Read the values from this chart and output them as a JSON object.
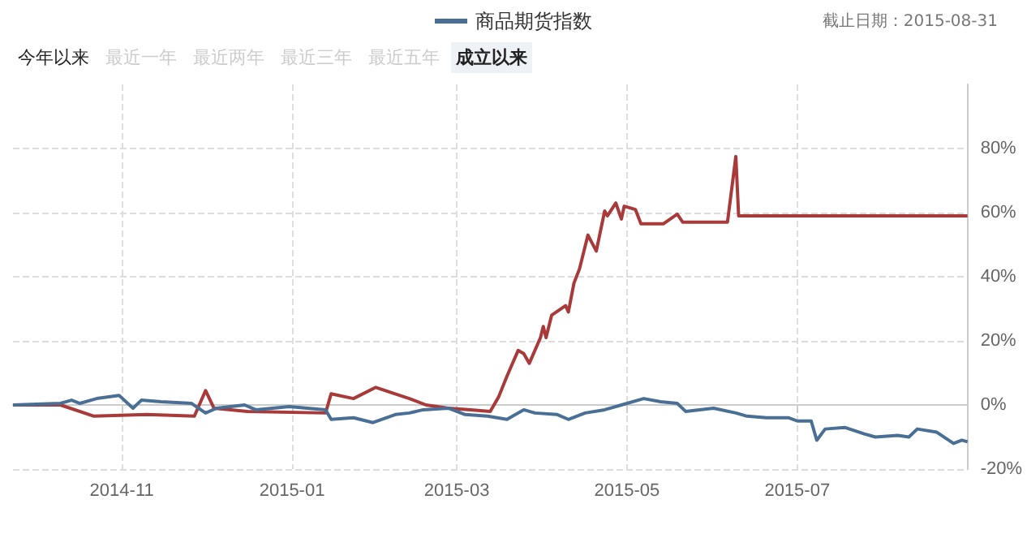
{
  "chart_data": {
    "type": "line",
    "annotations": [
      "截止日期：2015-08-31",
      "今年以来",
      "最近一年",
      "最近两年",
      "最近三年",
      "最近五年",
      "成立以来"
    ],
    "series": [
      {
        "color": "#a83a3a",
        "x": [
          "2014-09-23",
          "2014-10-10",
          "2014-10-22",
          "2014-11-10",
          "2014-11-27",
          "2014-12-01",
          "2014-12-04",
          "2014-12-16",
          "2015-01-13",
          "2015-01-15",
          "2015-01-23",
          "2015-01-31",
          "2015-02-05",
          "2015-02-12",
          "2015-02-18",
          "2015-02-26",
          "2015-03-06",
          "2015-03-13",
          "2015-03-16",
          "2015-03-19",
          "2015-03-23",
          "2015-03-25",
          "2015-03-27",
          "2015-03-31",
          "2015-04-01",
          "2015-04-02",
          "2015-04-04",
          "2015-04-09",
          "2015-04-10",
          "2015-04-12",
          "2015-04-14",
          "2015-04-17",
          "2015-04-20",
          "2015-04-23",
          "2015-04-24",
          "2015-04-27",
          "2015-04-29",
          "2015-04-30",
          "2015-05-04",
          "2015-05-06",
          "2015-05-14",
          "2015-05-19",
          "2015-05-21",
          "2015-06-06",
          "2015-06-09",
          "2015-06-10",
          "2015-08-31"
        ],
        "values": [
          0,
          0,
          -3.5,
          -3,
          -3.5,
          4.5,
          -1,
          -2,
          -2.5,
          3.5,
          2,
          5.5,
          4,
          2,
          0,
          -1,
          -1.5,
          -2,
          2.5,
          9,
          17,
          16,
          13,
          21,
          24.5,
          21,
          28,
          31,
          29,
          38,
          42.5,
          53,
          48,
          60.5,
          59,
          63,
          58,
          62,
          61,
          56.5,
          56.5,
          59.5,
          57,
          57,
          77.5,
          59,
          59
        ]
      },
      {
        "name": "商品期货指数",
        "color": "#4a6f94",
        "x": [
          "2014-09-23",
          "2014-10-10",
          "2014-10-14",
          "2014-10-17",
          "2014-10-23",
          "2014-10-31",
          "2014-11-05",
          "2014-11-08",
          "2014-11-15",
          "2014-11-26",
          "2014-12-01",
          "2014-12-05",
          "2014-12-15",
          "2014-12-19",
          "2014-12-31",
          "2015-01-13",
          "2015-01-15",
          "2015-01-23",
          "2015-01-30",
          "2015-02-07",
          "2015-02-12",
          "2015-02-17",
          "2015-02-26",
          "2015-03-04",
          "2015-03-12",
          "2015-03-19",
          "2015-03-25",
          "2015-03-29",
          "2015-04-06",
          "2015-04-10",
          "2015-04-16",
          "2015-04-23",
          "2015-04-29",
          "2015-05-07",
          "2015-05-13",
          "2015-05-19",
          "2015-05-22",
          "2015-06-01",
          "2015-06-09",
          "2015-06-13",
          "2015-06-20",
          "2015-06-28",
          "2015-07-01",
          "2015-07-06",
          "2015-07-08",
          "2015-07-11",
          "2015-07-18",
          "2015-07-25",
          "2015-07-29",
          "2015-08-06",
          "2015-08-10",
          "2015-08-13",
          "2015-08-20",
          "2015-08-26",
          "2015-08-29",
          "2015-08-31"
        ],
        "values": [
          0,
          0.5,
          1.5,
          0.5,
          2,
          3,
          -1,
          1.5,
          1,
          0.5,
          -2.5,
          -1,
          0,
          -1.5,
          -0.5,
          -1.5,
          -4.5,
          -4,
          -5.5,
          -3,
          -2.5,
          -1.5,
          -1,
          -3,
          -3.5,
          -4.5,
          -1.5,
          -2.5,
          -3,
          -4.5,
          -2.5,
          -1.5,
          0,
          2,
          1,
          0.5,
          -2,
          -1,
          -2.5,
          -3.5,
          -4,
          -4,
          -5,
          -5,
          -11,
          -7.5,
          -7,
          -9,
          -10,
          -9.5,
          -10,
          -7.5,
          -8.5,
          -12,
          -11,
          -11.5
        ]
      }
    ],
    "xlim": [
      "2014-09-23",
      "2015-08-31"
    ],
    "xticks": [
      "2014-11",
      "2015-01",
      "2015-03",
      "2015-05",
      "2015-07"
    ],
    "ylim": [
      -20,
      100
    ],
    "yticks": [
      {
        "value": -20,
        "label": "-20%"
      },
      {
        "value": 0,
        "label": "0%"
      },
      {
        "value": 20,
        "label": "20%"
      },
      {
        "value": 40,
        "label": "40%"
      },
      {
        "value": 60,
        "label": "60%"
      },
      {
        "value": 80,
        "label": "80%"
      }
    ],
    "grid": true,
    "legend": "top",
    "marker": "none",
    "line_style": "solid"
  }
}
